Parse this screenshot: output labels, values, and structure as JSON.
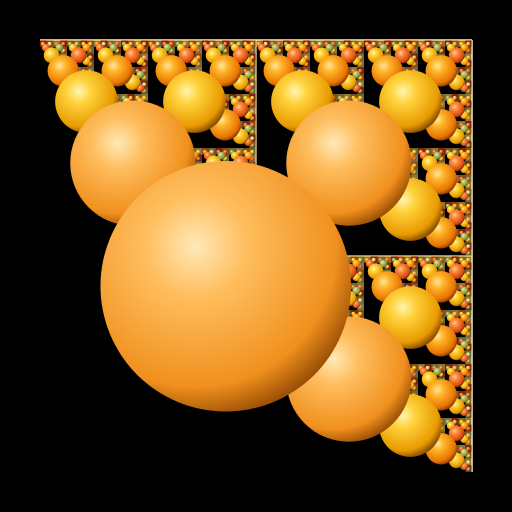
{
  "image": {
    "background": "#000000",
    "palette": {
      "orange": [
        "#ffe7a0",
        "#ffb52a",
        "#e87400",
        "#7a2a00"
      ],
      "gold": [
        "#fff6b0",
        "#ffd13a",
        "#e89a00",
        "#6d3a00"
      ],
      "peach": [
        "#ffe9b8",
        "#ffbe5e",
        "#f0901e",
        "#8a4300"
      ],
      "sage": [
        "#e9f2b0",
        "#b9c86a",
        "#7c8f3a",
        "#33420f"
      ],
      "coral": [
        "#ffd0a0",
        "#ff8a3a",
        "#d84a10",
        "#5a1400"
      ],
      "cream": [
        "#fffbd6",
        "#f1e29a",
        "#c9ae55",
        "#5e4a12"
      ]
    }
  }
}
